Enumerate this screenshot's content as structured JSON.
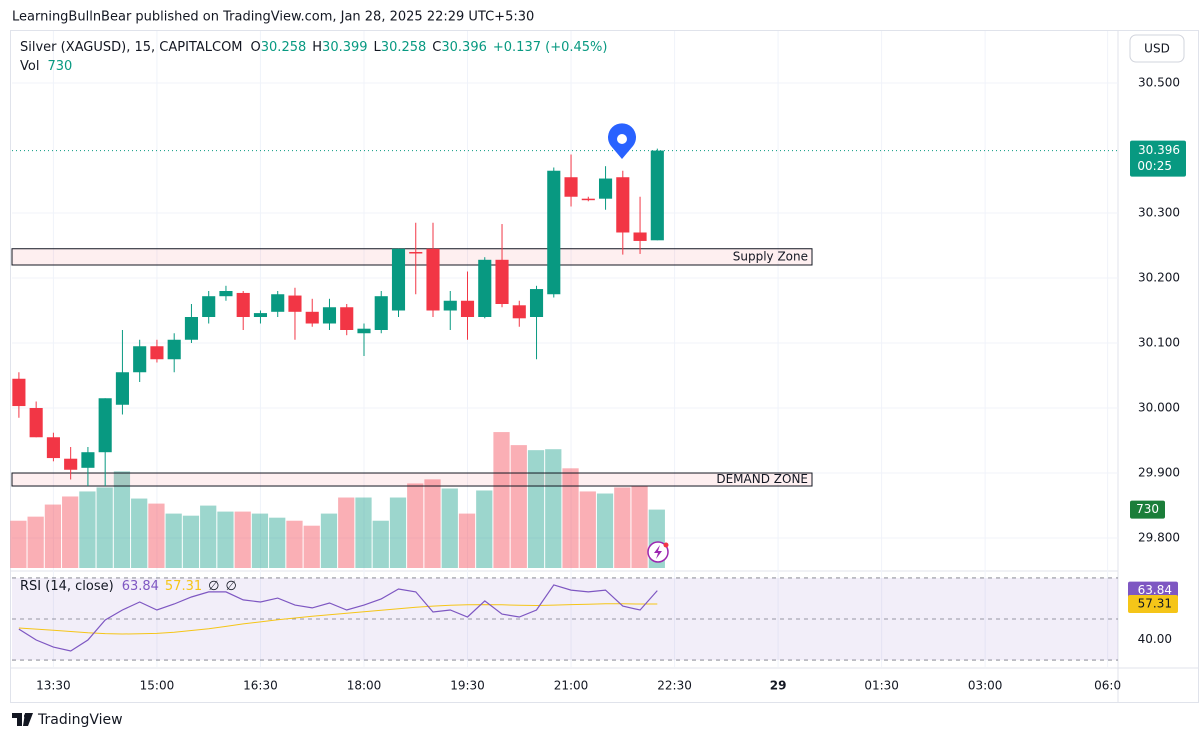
{
  "header": "LearningBullnBear published on TradingView.com, Jan 28, 2025 22:29 UTC+5:30",
  "footer": "TradingView",
  "chart_data": {
    "type": "candlestick",
    "symbol": "Silver (XAGUSD), 15, CAPITALCOM",
    "ohlc_labels": [
      "O",
      "H",
      "L",
      "C"
    ],
    "change": "+0.137 (+0.45%)",
    "volume_label": "Vol",
    "currency": "USD",
    "countdown": "00:25",
    "up_color": "#089981",
    "down_color": "#f23645",
    "grid": true,
    "x": [
      0,
      1,
      2,
      3,
      4,
      5,
      6,
      7,
      8,
      9,
      10,
      11,
      12,
      13,
      14,
      15,
      16,
      17,
      18,
      19,
      20,
      21,
      22,
      23,
      24,
      25,
      26,
      27,
      28,
      29,
      30,
      31,
      32,
      33,
      34,
      35,
      36,
      37
    ],
    "open": [
      30.045,
      30.0,
      29.955,
      29.922,
      29.908,
      29.932,
      30.005,
      30.055,
      30.095,
      30.075,
      30.105,
      30.14,
      30.172,
      30.177,
      30.14,
      30.148,
      30.173,
      30.148,
      30.13,
      30.155,
      30.115,
      30.12,
      30.15,
      30.24,
      30.245,
      30.15,
      30.165,
      30.14,
      30.228,
      30.158,
      30.14,
      30.175,
      30.355,
      30.322,
      30.322,
      30.355,
      30.27,
      30.258
    ],
    "high": [
      30.055,
      30.01,
      29.962,
      29.94,
      29.94,
      30.015,
      30.12,
      30.105,
      30.105,
      30.115,
      30.16,
      30.18,
      30.188,
      30.18,
      30.15,
      30.18,
      30.185,
      30.168,
      30.168,
      30.16,
      30.13,
      30.18,
      30.245,
      30.285,
      30.285,
      30.18,
      30.21,
      30.232,
      30.283,
      30.165,
      30.188,
      30.37,
      30.39,
      30.325,
      30.372,
      30.365,
      30.325,
      30.399
    ],
    "low": [
      29.985,
      29.955,
      29.918,
      29.89,
      29.88,
      29.88,
      29.99,
      30.04,
      30.07,
      30.055,
      30.1,
      30.13,
      30.165,
      30.12,
      30.13,
      30.14,
      30.105,
      30.125,
      30.12,
      30.112,
      30.08,
      30.115,
      30.14,
      30.175,
      30.14,
      30.12,
      30.105,
      30.138,
      30.155,
      30.125,
      30.075,
      30.17,
      30.31,
      30.318,
      30.305,
      30.236,
      30.237,
      30.258
    ],
    "close": [
      30.003,
      29.955,
      29.923,
      29.905,
      29.932,
      30.015,
      30.055,
      30.095,
      30.075,
      30.105,
      30.14,
      30.172,
      30.18,
      30.14,
      30.146,
      30.175,
      30.148,
      30.13,
      30.155,
      30.12,
      30.122,
      30.172,
      30.245,
      30.238,
      30.15,
      30.165,
      30.14,
      30.228,
      30.16,
      30.138,
      30.183,
      30.365,
      30.325,
      30.32,
      30.353,
      30.27,
      30.257,
      30.396
    ],
    "volume": [
      591,
      642,
      793,
      894,
      957,
      1007,
      1208,
      868,
      805,
      680,
      654,
      780,
      705,
      705,
      680,
      629,
      591,
      529,
      680,
      881,
      881,
      591,
      881,
      1057,
      1108,
      994,
      680,
      969,
      1699,
      1536,
      1473,
      1485,
      1246,
      957,
      931,
      1007,
      1020,
      730
    ],
    "volume_ylim": [
      0,
      4000
    ],
    "ylim": [
      29.7508,
      30.5815
    ],
    "yticks": [
      {
        "value": 29.8,
        "label": "29.800"
      },
      {
        "value": 29.9,
        "label": "29.900"
      },
      {
        "value": 30.0,
        "label": "30.000"
      },
      {
        "value": 30.1,
        "label": "30.100"
      },
      {
        "value": 30.2,
        "label": "30.200"
      },
      {
        "value": 30.3,
        "label": "30.300"
      },
      {
        "value": 30.5,
        "label": "30.500"
      }
    ],
    "xlim": [
      -0.4,
      63.7
    ],
    "xticks": [
      {
        "value": 2,
        "label": "13:30"
      },
      {
        "value": 8,
        "label": "15:00"
      },
      {
        "value": 14,
        "label": "16:30"
      },
      {
        "value": 20,
        "label": "18:00"
      },
      {
        "value": 26,
        "label": "19:30"
      },
      {
        "value": 32,
        "label": "21:00"
      },
      {
        "value": 38,
        "label": "22:30"
      },
      {
        "value": 44,
        "label": "29"
      },
      {
        "value": 50,
        "label": "01:30"
      },
      {
        "value": 56,
        "label": "03:00"
      },
      {
        "value": 63.1,
        "label": "06:0"
      }
    ],
    "zones": [
      {
        "label": "Supply Zone",
        "top": 30.245,
        "bottom": 30.22
      },
      {
        "label": "DEMAND ZONE",
        "top": 29.9,
        "bottom": 29.88
      }
    ],
    "rsi": {
      "label": "RSI (14, close)",
      "color": "#7e57c2",
      "ma_color": "#f5c518",
      "values": [
        45.1,
        39.8,
        36.3,
        34.4,
        39.8,
        49.5,
        54.4,
        58.3,
        54.4,
        57.3,
        60.7,
        63.2,
        63.2,
        59.3,
        58.3,
        60.2,
        56.8,
        55.4,
        57.8,
        54.4,
        56.8,
        59.8,
        64.6,
        63.2,
        53.4,
        54.4,
        51.0,
        58.8,
        52.4,
        51.0,
        54.4,
        66.6,
        64.1,
        63.2,
        64.1,
        56.3,
        54.4,
        63.84
      ],
      "ma": [
        45.6,
        45.1,
        44.5,
        43.9,
        43.3,
        42.9,
        42.7,
        42.8,
        43.0,
        43.6,
        44.4,
        45.3,
        46.4,
        47.6,
        48.6,
        49.6,
        50.5,
        51.3,
        52.1,
        52.8,
        53.5,
        54.3,
        55.0,
        55.7,
        56.3,
        56.7,
        56.9,
        57.0,
        56.9,
        56.7,
        56.6,
        56.8,
        57.0,
        57.2,
        57.4,
        57.4,
        57.3,
        57.31
      ],
      "ylim": [
        27.6,
        72.9
      ],
      "yticks": [
        {
          "value": 40,
          "label": "40.00"
        }
      ],
      "band": [
        30,
        70
      ],
      "mid": 50,
      "flags": [
        "∅",
        "∅"
      ]
    }
  }
}
